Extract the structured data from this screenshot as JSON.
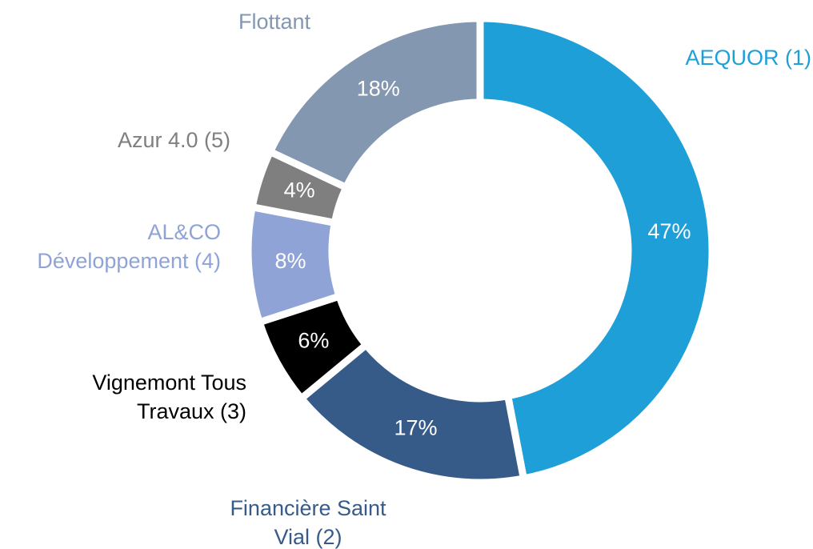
{
  "chart_data": {
    "type": "donut",
    "categories": [
      "AEQUOR (1)",
      "Financière Saint Vial (2)",
      "Vignemont Tous Travaux (3)",
      "AL&CO Développement (4)",
      "Azur 4.0 (5)",
      "Flottant"
    ],
    "values": [
      47,
      17,
      6,
      8,
      4,
      18
    ],
    "value_labels": [
      "47%",
      "17%",
      "6%",
      "8%",
      "4%",
      "18%"
    ],
    "colors": [
      "#1f9fd8",
      "#365b89",
      "#000000",
      "#8fa3d6",
      "#7f7f7f",
      "#8497b0"
    ]
  }
}
